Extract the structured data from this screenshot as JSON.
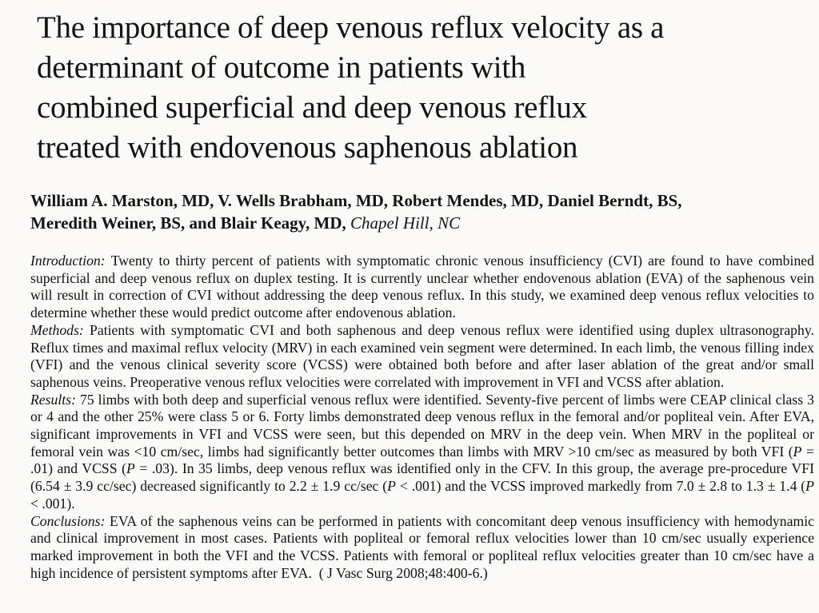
{
  "page": {
    "background": "#fbfaf8",
    "text_color": "#14120f"
  },
  "article": {
    "title_lines": [
      "The importance of deep venous reflux velocity as a",
      "determinant of outcome in patients with",
      "combined superficial and deep venous reflux",
      "treated with endovenous saphenous ablation"
    ],
    "author_lines": [
      {
        "segments": [
          {
            "text": "William A. Marston, MD, V. Wells Brabham, MD, Robert Mendes, MD, Daniel Berndt, BS,",
            "bold": true
          }
        ]
      },
      {
        "segments": [
          {
            "text": "Meredith Weiner, BS, ",
            "bold": true
          },
          {
            "text": "and ",
            "bold": true
          },
          {
            "text": "Blair Keagy, MD, ",
            "bold": true
          },
          {
            "text": "Chapel Hill, NC",
            "italic": true
          }
        ]
      }
    ],
    "abstract": {
      "paragraphs": [
        {
          "name": "introduction",
          "segments": [
            {
              "text": "Introduction: ",
              "italic": true,
              "label": true
            },
            {
              "text": "Twenty to thirty percent of patients with symptomatic chronic venous insufficiency (CVI) are found to have combined superficial and deep venous reflux on duplex testing. It is currently unclear whether endovenous ablation (EVA) of the saphenous vein will result in correction of CVI without addressing the deep venous reflux. In this study, we examined deep venous reflux velocities to determine whether these would predict outcome after endovenous ablation."
            }
          ]
        },
        {
          "name": "methods",
          "segments": [
            {
              "text": "Methods: ",
              "italic": true,
              "label": true
            },
            {
              "text": "Patients with symptomatic CVI and both saphenous and deep venous reflux were identified using duplex ultrasonography. Reflux times and maximal reflux velocity (MRV) in each examined vein segment were determined. In each limb, the venous filling index (VFI) and the venous clinical severity score (VCSS) were obtained both before and after laser ablation of the great and/or small saphenous veins. Preoperative venous reflux velocities were correlated with improvement in VFI and VCSS after ablation."
            }
          ]
        },
        {
          "name": "results",
          "segments": [
            {
              "text": "Results: ",
              "italic": true,
              "label": true
            },
            {
              "text": "75 limbs with both deep and superficial venous reflux were identified. Seventy-five percent of limbs were CEAP clinical class 3 or 4 and the other 25% were class 5 or 6. Forty limbs demonstrated deep venous reflux in the femoral and/or popliteal vein. After EVA, significant improvements in VFI and VCSS were seen, but this depended on MRV in the deep vein. When MRV in the popliteal or femoral vein was <10 cm/sec, limbs had significantly better outcomes than limbs with MRV >10 cm/sec as measured by both VFI ("
            },
            {
              "text": "P",
              "italic": true
            },
            {
              "text": " = .01) and VCSS ("
            },
            {
              "text": "P",
              "italic": true
            },
            {
              "text": " = .03). In 35 limbs, deep venous reflux was identified only in the CFV. In this group, the average pre-procedure VFI (6.54 ± 3.9 cc/sec) decreased significantly to 2.2 ± 1.9 cc/sec ("
            },
            {
              "text": "P",
              "italic": true
            },
            {
              "text": " < .001) and the VCSS improved markedly from 7.0 ± 2.8 to 1.3 ± 1.4 ("
            },
            {
              "text": "P",
              "italic": true
            },
            {
              "text": " < .001)."
            }
          ]
        },
        {
          "name": "conclusions",
          "segments": [
            {
              "text": "Conclusions: ",
              "italic": true,
              "label": true
            },
            {
              "text": "EVA of the saphenous veins can be performed in patients with concomitant deep venous insufficiency with hemodynamic and clinical improvement in most cases. Patients with popliteal or femoral reflux velocities lower than 10 cm/sec usually experience marked improvement in both the VFI and the VCSS. Patients with femoral or popliteal reflux velocities greater than 10 cm/sec have a high incidence of persistent symptoms after EVA."
            },
            {
              "text": " ( J Vasc Surg 2008;48:400-6.)"
            }
          ]
        }
      ]
    }
  }
}
